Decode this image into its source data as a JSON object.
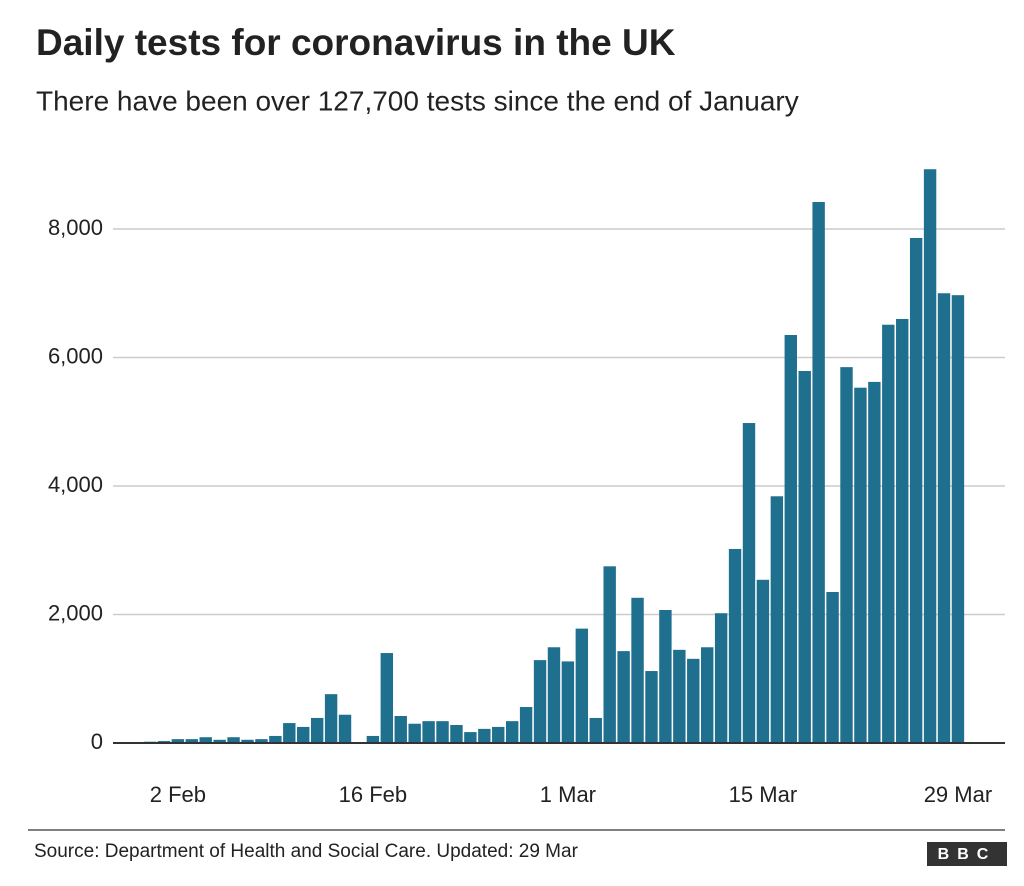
{
  "chart_data": {
    "type": "bar",
    "title": "Daily tests for coronavirus in the UK",
    "subtitle": "There have been over 127,700 tests since the end of January",
    "source": "Source: Department of Health and Social Care. Updated: 29 Mar",
    "logo": "BBC",
    "color": "#1f6f8e",
    "categories": [
      null,
      null,
      "2 Feb",
      null,
      null,
      null,
      null,
      null,
      null,
      null,
      null,
      null,
      null,
      null,
      null,
      null,
      "16 Feb",
      null,
      null,
      null,
      null,
      null,
      null,
      null,
      null,
      null,
      null,
      null,
      null,
      null,
      "1 Mar",
      null,
      null,
      null,
      null,
      null,
      null,
      null,
      null,
      null,
      null,
      null,
      null,
      null,
      "15 Mar",
      null,
      null,
      null,
      null,
      null,
      null,
      null,
      null,
      null,
      null,
      null,
      null,
      null,
      "29 Mar"
    ],
    "values": [
      20,
      30,
      60,
      60,
      90,
      50,
      90,
      50,
      60,
      110,
      310,
      250,
      390,
      760,
      440,
      10,
      110,
      1400,
      420,
      300,
      340,
      340,
      280,
      170,
      220,
      250,
      340,
      560,
      1290,
      1490,
      1270,
      1780,
      390,
      2750,
      1430,
      2260,
      1120,
      2070,
      1450,
      1310,
      1490,
      2020,
      3020,
      4980,
      2540,
      3840,
      6350,
      5790,
      8420,
      2350,
      5850,
      5530,
      5620,
      6510,
      6600,
      7860,
      8930,
      7000,
      6970
    ],
    "ylim": [
      0,
      9300
    ],
    "yticks": [
      0,
      {
        "value": 2000,
        "label": "2,000"
      },
      {
        "value": 4000,
        "label": "4,000"
      },
      {
        "value": 6000,
        "label": "6,000"
      },
      {
        "value": 8000,
        "label": "8,000"
      }
    ],
    "grid": true
  }
}
